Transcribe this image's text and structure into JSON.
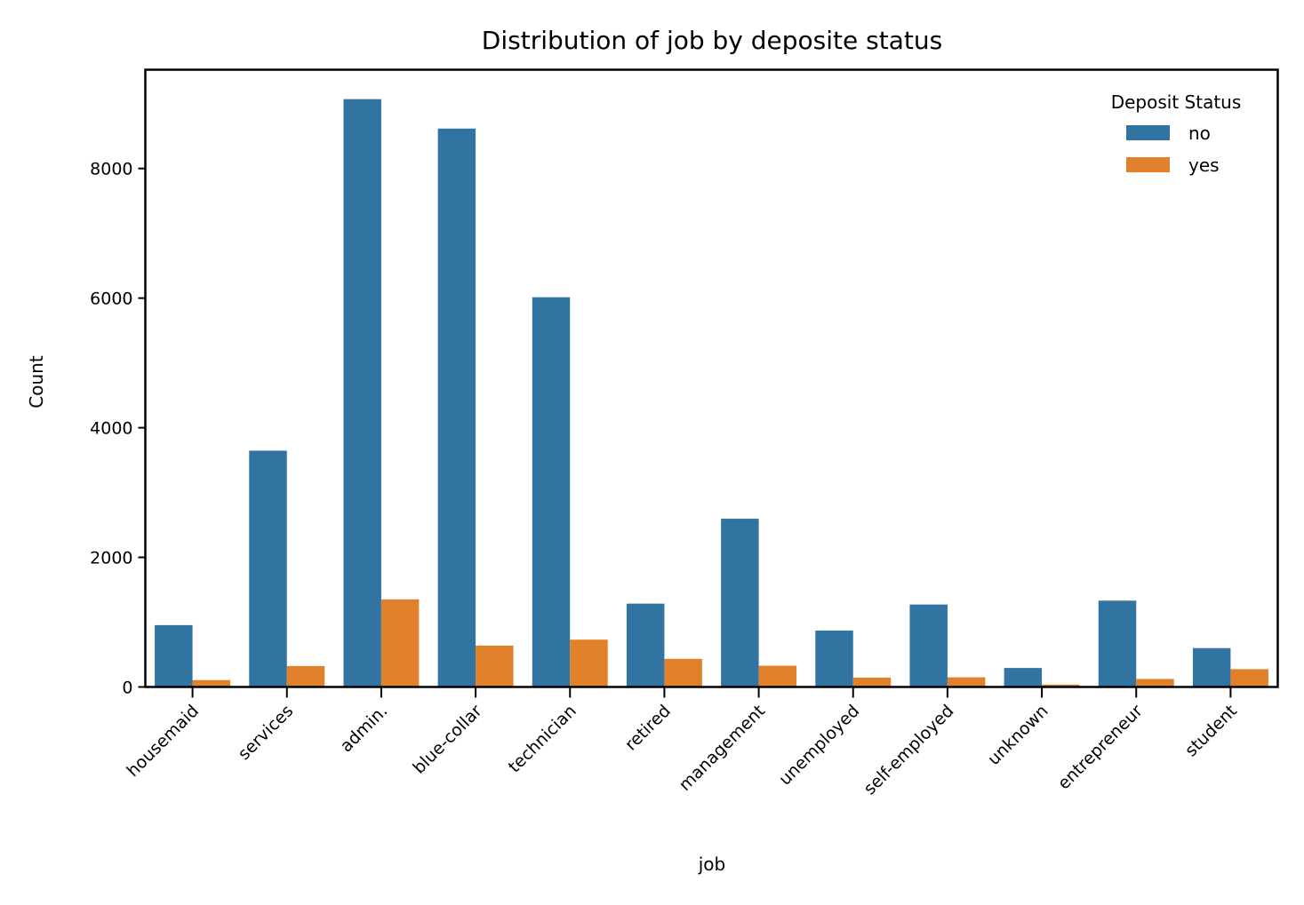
{
  "chart_data": {
    "type": "bar",
    "title": "Distribution of job by deposite status",
    "xlabel": "job",
    "ylabel": "Count",
    "categories": [
      "housemaid",
      "services",
      "admin.",
      "blue-collar",
      "technician",
      "retired",
      "management",
      "unemployed",
      "self-employed",
      "unknown",
      "entrepreneur",
      "student"
    ],
    "series": [
      {
        "name": "no",
        "color": "#3274a1",
        "values": [
          954,
          3646,
          9070,
          8616,
          6013,
          1286,
          2596,
          870,
          1272,
          293,
          1332,
          600
        ]
      },
      {
        "name": "yes",
        "color": "#e1812c",
        "values": [
          106,
          323,
          1352,
          638,
          730,
          434,
          328,
          144,
          149,
          37,
          124,
          275
        ]
      }
    ],
    "legend": {
      "title": "Deposit Status",
      "placement": "top-right"
    },
    "ylim": [
      0,
      9524
    ],
    "yticks": [
      0,
      2000,
      4000,
      6000,
      8000
    ],
    "grid": false
  }
}
